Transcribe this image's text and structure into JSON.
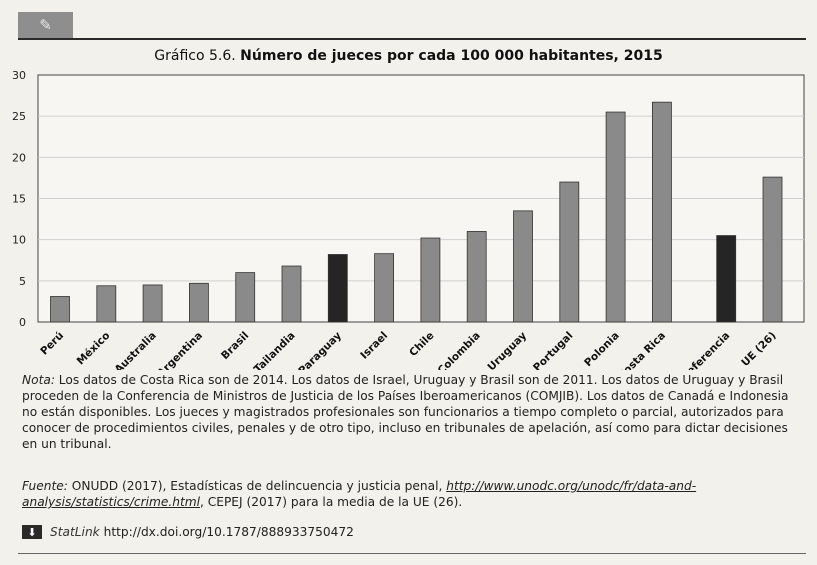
{
  "header": {
    "icon": "pencil-icon"
  },
  "title_prefix": "Gráfico 5.6.",
  "title_main": "Número de jueces por cada 100 000 habitantes, 2015",
  "chart_data": {
    "type": "bar",
    "categories": [
      "Perú",
      "México",
      "Australia",
      "Argentina",
      "Brasil",
      "Tailandia",
      "Paraguay",
      "Israel",
      "Chile",
      "Colombia",
      "Uruguay",
      "Portugal",
      "Polonia",
      "Costa Rica",
      "Referencia",
      "UE (26)"
    ],
    "values": [
      3.1,
      4.4,
      4.5,
      4.7,
      6.0,
      6.8,
      8.2,
      8.3,
      10.2,
      11.0,
      13.5,
      17.0,
      25.5,
      26.7,
      10.5,
      17.6
    ],
    "highlight": [
      "Paraguay",
      "Referencia"
    ],
    "colors": {
      "bar": "#8a8a8a",
      "highlight": "#252525",
      "frame": "#444444",
      "grid": "#cfcfcf"
    },
    "ylim": [
      0,
      30
    ],
    "yticks": [
      0,
      5,
      10,
      15,
      20,
      25,
      30
    ],
    "title": "Número de jueces por cada 100 000 habitantes, 2015",
    "xlabel": "",
    "ylabel": "",
    "grid": true
  },
  "note": {
    "label": "Nota:",
    "text": " Los datos de Costa Rica son de 2014. Los datos de Israel, Uruguay y Brasil son de 2011. Los datos de Uruguay y Brasil proceden de la Conferencia de Ministros de Justicia de los Países Iberoamericanos (COMJIB). Los datos de Canadá e Indonesia no están disponibles. Los jueces y magistrados profesionales son funcionarios a tiempo completo o parcial, autorizados para conocer de procedimientos civiles, penales y de otro tipo, incluso en tribunales de apelación, así como para dictar decisiones en un tribunal."
  },
  "source": {
    "label": "Fuente:",
    "text_before": " ONUDD (2017), Estadísticas de delincuencia y justicia penal, ",
    "link": "http://www.unodc.org/unodc/fr/data-and-analysis/statistics/crime.html",
    "text_after": ", CEPEJ (2017) para la media de la UE (26)."
  },
  "statlink": {
    "icon": "download-icon",
    "brand": "StatLink",
    "url": "http://dx.doi.org/10.1787/888933750472"
  }
}
